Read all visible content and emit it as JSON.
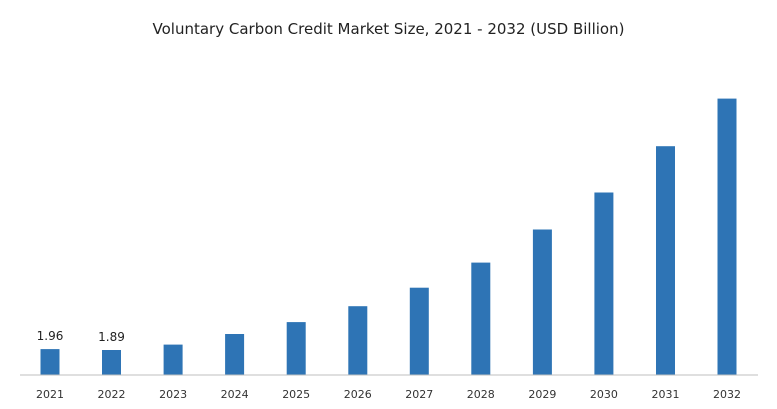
{
  "chart_data": {
    "type": "bar",
    "title": "Voluntary Carbon Credit Market Size, 2021 - 2032 (USD Billion)",
    "xlabel": "",
    "ylabel": "",
    "categories": [
      "2021",
      "2022",
      "2023",
      "2024",
      "2025",
      "2026",
      "2027",
      "2028",
      "2029",
      "2030",
      "2031",
      "2032"
    ],
    "values": [
      1.96,
      1.89,
      2.3,
      3.1,
      4.0,
      5.2,
      6.6,
      8.5,
      11.0,
      13.8,
      17.3,
      20.9
    ],
    "data_labels": [
      "1.96",
      "1.89",
      "",
      "",
      "",
      "",
      "",
      "",
      "",
      "",
      "",
      ""
    ],
    "ylim": [
      0,
      22
    ],
    "grid": false,
    "legend": "none",
    "colors": {
      "bar": "#2e74b5",
      "axis": "#bfbfbf"
    }
  }
}
